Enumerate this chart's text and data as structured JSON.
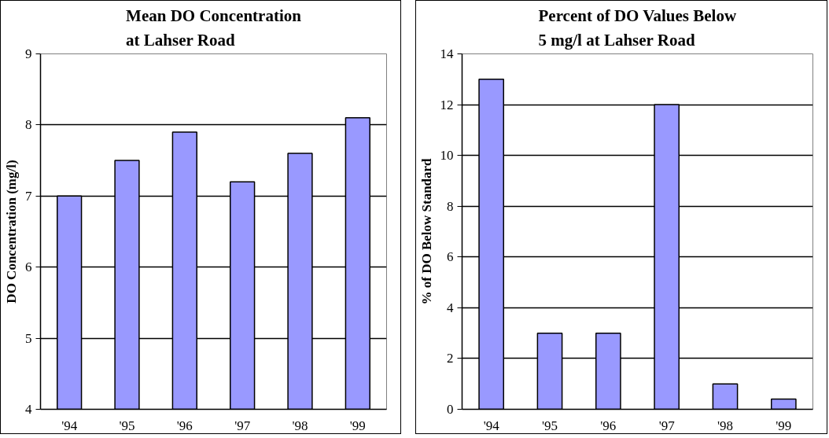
{
  "chart_data": [
    {
      "type": "bar",
      "title": "Mean DO Concentration\nat Lahser Road",
      "ylabel": "DO Concentration (mg/l)",
      "categories": [
        "'94",
        "'95",
        "'96",
        "'97",
        "'98",
        "'99"
      ],
      "values": [
        7.0,
        7.5,
        7.9,
        7.2,
        7.6,
        8.1
      ],
      "color": "#9999ff",
      "ylim": [
        4,
        9
      ],
      "yticks": [
        4,
        5,
        6,
        7,
        8,
        9
      ],
      "grid": "y"
    },
    {
      "type": "bar",
      "title": "Percent of DO Values Below\n5 mg/l at Lahser Road",
      "ylabel": "% of DO Below Standard",
      "categories": [
        "'94",
        "'95",
        "'96",
        "'97",
        "'98",
        "'99"
      ],
      "values": [
        13,
        3,
        3,
        12,
        1,
        0.4
      ],
      "color": "#9999ff",
      "ylim": [
        0,
        14
      ],
      "yticks": [
        0,
        2,
        4,
        6,
        8,
        10,
        12,
        14
      ],
      "grid": "y"
    }
  ]
}
